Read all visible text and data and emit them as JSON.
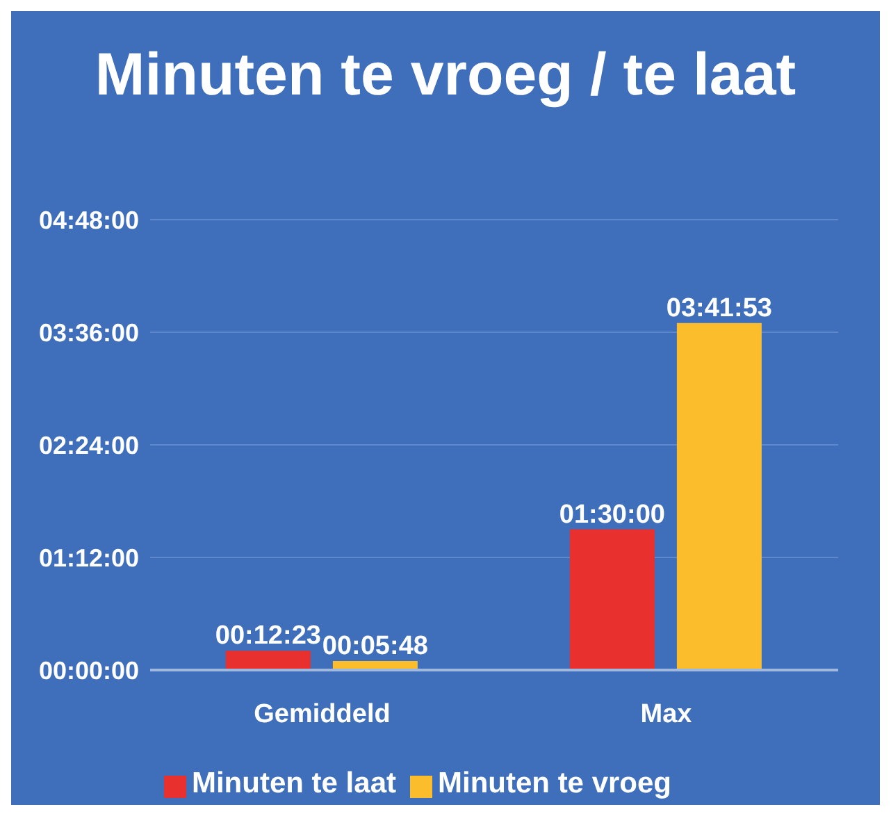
{
  "chart_data": {
    "type": "bar",
    "title": "Minuten te vroeg / te laat",
    "categories": [
      "Gemiddeld",
      "Max"
    ],
    "series": [
      {
        "name": "Minuten te laat",
        "color": "#e8302e",
        "values": [
          12.383,
          90
        ],
        "value_labels": [
          "00:12:23",
          "01:30:00"
        ]
      },
      {
        "name": "Minuten te vroeg",
        "color": "#fbbd2c",
        "values": [
          5.8,
          221.883
        ],
        "value_labels": [
          "00:05:48",
          "03:41:53"
        ]
      }
    ],
    "ylim": [
      0,
      288
    ],
    "yticks": [
      {
        "value": 0,
        "label": "00:00:00"
      },
      {
        "value": 72,
        "label": "01:12:00"
      },
      {
        "value": 144,
        "label": "02:24:00"
      },
      {
        "value": 216,
        "label": "03:36:00"
      },
      {
        "value": 288,
        "label": "04:48:00"
      }
    ],
    "grid": "y",
    "legend": "bottom"
  }
}
